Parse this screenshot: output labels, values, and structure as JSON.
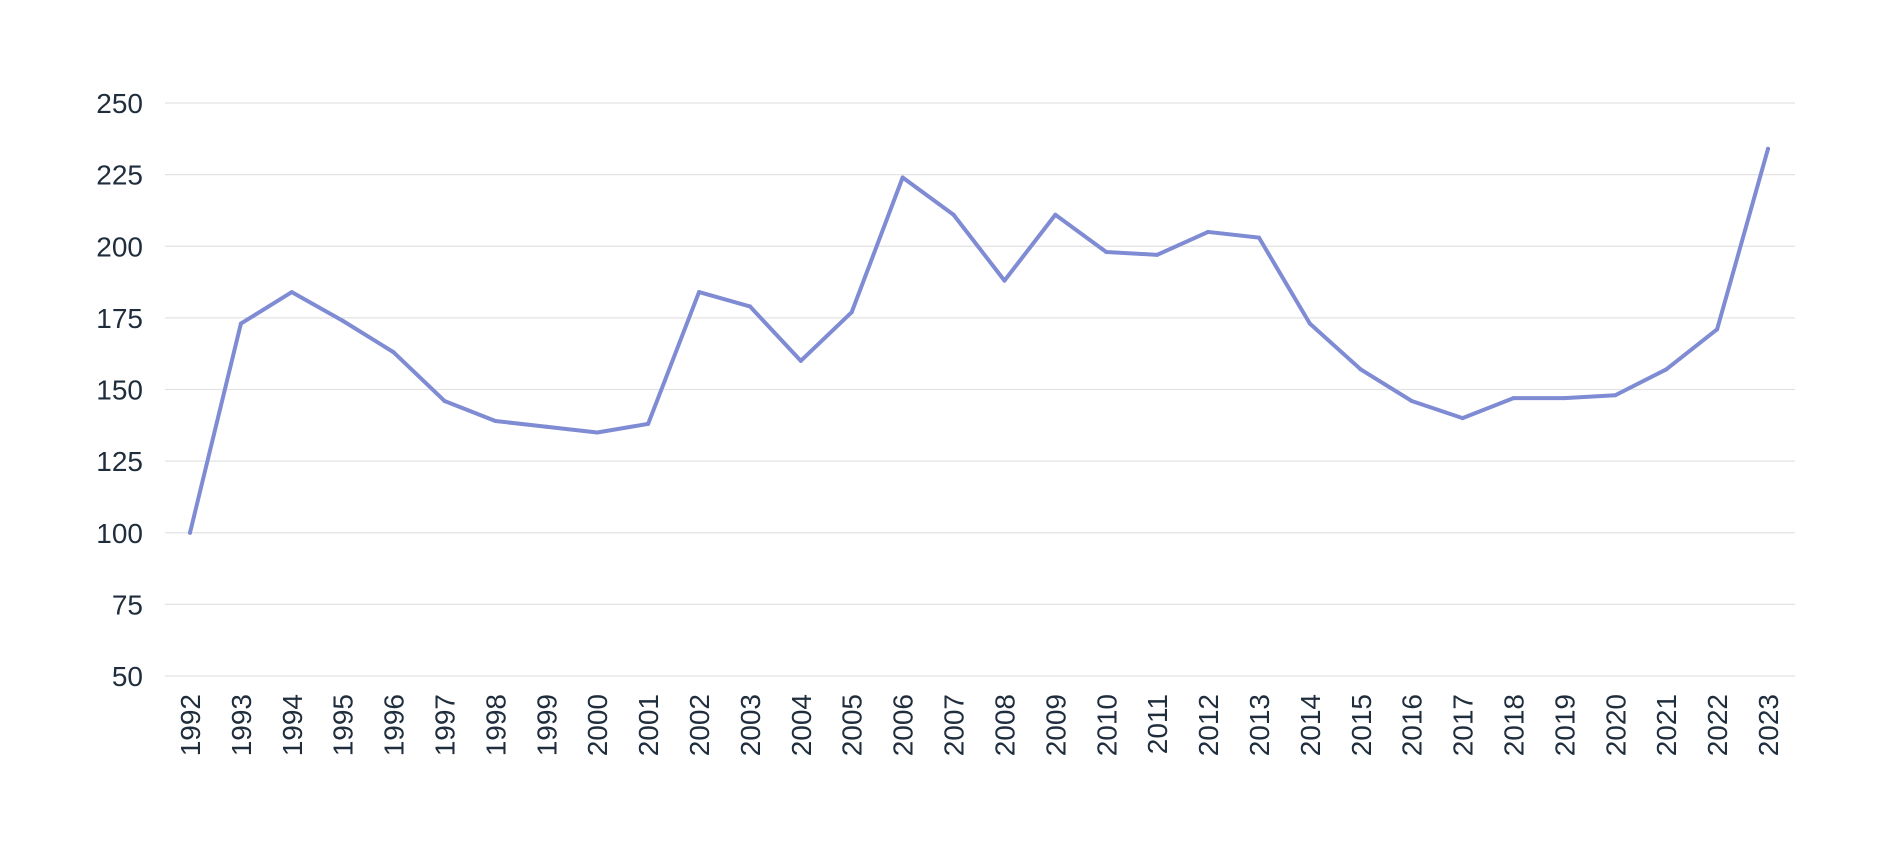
{
  "chart_data": {
    "type": "line",
    "title": "",
    "xlabel": "",
    "ylabel": "",
    "x": [
      "1992",
      "1993",
      "1994",
      "1995",
      "1996",
      "1997",
      "1998",
      "1999",
      "2000",
      "2001",
      "2002",
      "2003",
      "2004",
      "2005",
      "2006",
      "2007",
      "2008",
      "2009",
      "2010",
      "2011",
      "2012",
      "2013",
      "2014",
      "2015",
      "2016",
      "2017",
      "2018",
      "2019",
      "2020",
      "2021",
      "2022",
      "2023"
    ],
    "series": [
      {
        "color": "#7f8bd3",
        "values": [
          100,
          173,
          184,
          174,
          163,
          146,
          139,
          137,
          135,
          138,
          184,
          179,
          160,
          177,
          224,
          211,
          188,
          211,
          198,
          197,
          205,
          203,
          173,
          157,
          146,
          140,
          147,
          147,
          148,
          157,
          171,
          234
        ]
      }
    ],
    "ylim": [
      50,
      250
    ],
    "yticks": [
      "50",
      "75",
      "100",
      "125",
      "150",
      "175",
      "200",
      "225",
      "250"
    ],
    "grid": true,
    "legend": "none"
  }
}
